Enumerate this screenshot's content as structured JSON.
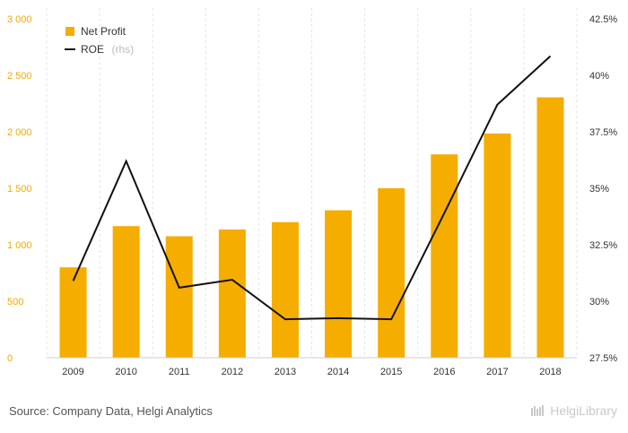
{
  "chart_data": {
    "type": "bar+line",
    "categories": [
      "2009",
      "2010",
      "2011",
      "2012",
      "2013",
      "2014",
      "2015",
      "2016",
      "2017",
      "2018"
    ],
    "series": [
      {
        "name": "Net Profit",
        "type": "bar",
        "axis": "left",
        "values": [
          800,
          1165,
          1075,
          1135,
          1200,
          1305,
          1500,
          1800,
          1985,
          2305
        ]
      },
      {
        "name": "ROE",
        "name_suffix": "(rhs)",
        "type": "line",
        "axis": "right",
        "values": [
          30.9,
          36.2,
          30.6,
          30.95,
          29.2,
          29.25,
          29.2,
          33.9,
          38.7,
          40.85
        ]
      }
    ],
    "left_axis": {
      "min": 0,
      "max": 3000,
      "step": 500,
      "tick_labels": [
        "0",
        "500",
        "1 000",
        "1 500",
        "2 000",
        "2 500",
        "3 000"
      ]
    },
    "right_axis": {
      "min": 27.5,
      "max": 42.5,
      "step": 2.5,
      "tick_labels": [
        "27.5%",
        "30%",
        "32.5%",
        "35%",
        "37.5%",
        "40%",
        "42.5%"
      ]
    },
    "legend_position": "top-left",
    "grid": "vertical dashed",
    "colors": {
      "bar": "#f5ad00",
      "line": "#111111",
      "left_ticks": "#f2a900"
    }
  },
  "footer": {
    "source": "Source: Company Data, Helgi Analytics",
    "brand": "HelgiLibrary"
  }
}
